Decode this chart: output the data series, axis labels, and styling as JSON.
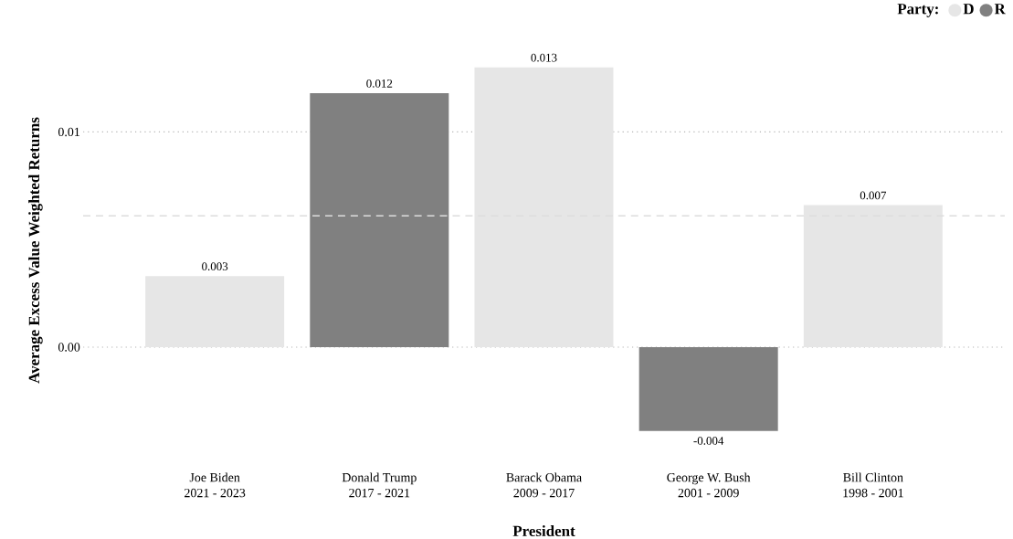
{
  "chart_data": {
    "type": "bar",
    "xlabel": "President",
    "ylabel": "Average Excess Value Weighted Returns",
    "legend_title": "Party:",
    "categories": [
      "Joe Biden\n2021 - 2023",
      "Donald Trump\n2017 - 2021",
      "Barack Obama\n2009 - 2017",
      "George W. Bush\n2001 - 2009",
      "Bill Clinton\n1998 - 2001"
    ],
    "series": [
      {
        "name": "D",
        "color": "#e6e6e6",
        "values": [
          0.0033,
          null,
          0.013,
          null,
          0.0066
        ],
        "value_labels": [
          "0.003",
          null,
          "0.013",
          null,
          "0.007"
        ]
      },
      {
        "name": "R",
        "color": "#808080",
        "values": [
          null,
          0.0118,
          null,
          -0.0039,
          null
        ],
        "value_labels": [
          null,
          "0.012",
          null,
          "-0.004",
          null
        ]
      }
    ],
    "ylim": [
      -0.0045,
      0.0135
    ],
    "yticks": [
      {
        "value": 0,
        "label": "0.00"
      },
      {
        "value": 0.01,
        "label": "0.01"
      }
    ],
    "grid": "y",
    "legend": "top right",
    "ref_lines": [
      {
        "axis": "y",
        "value": 0.0061,
        "color": "#dddddd",
        "line_style": "dashed"
      }
    ]
  }
}
